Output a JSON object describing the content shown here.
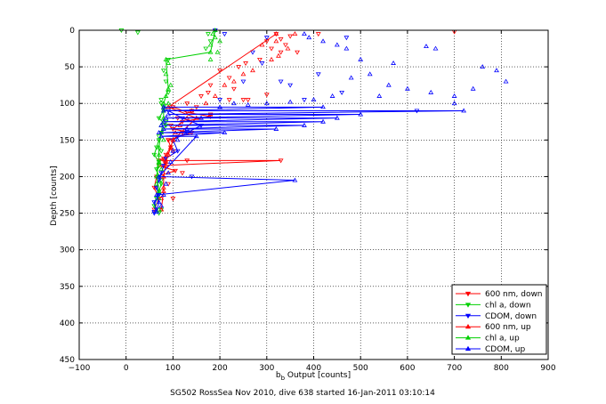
{
  "chart_data": {
    "type": "scatter",
    "title": "",
    "xlabel_main": "b",
    "xlabel_sub": "b",
    "xlabel_rest": " Output [counts]",
    "ylabel": "Depth [counts]",
    "caption": "SG502 RossSea Nov 2010, dive 638 started 16-Jan-2011 03:10:14",
    "xlim": [
      -100,
      900
    ],
    "ylim": [
      0,
      450
    ],
    "y_reversed": true,
    "grid": true,
    "xticks": [
      "−100",
      "0",
      "100",
      "200",
      "300",
      "400",
      "500",
      "600",
      "700",
      "800",
      "900"
    ],
    "yticks": [
      "0",
      "50",
      "100",
      "150",
      "200",
      "250",
      "300",
      "350",
      "400",
      "450"
    ],
    "legend_position": "bottom-right",
    "series": [
      {
        "name": "600 nm, down",
        "color": "#ff0000",
        "marker": "triangle-down",
        "line_x": [
          100,
          130,
          180,
          120,
          100,
          140,
          90,
          95,
          85,
          80,
          70,
          80,
          130,
          330,
          70,
          105,
          65,
          60,
          70,
          60
        ],
        "line_y": [
          105,
          112,
          118,
          125,
          135,
          140,
          150,
          160,
          170,
          175,
          178,
          178,
          178,
          178,
          185,
          192,
          200,
          215,
          230,
          245
        ],
        "points": [
          [
            320,
            5
          ],
          [
            330,
            12
          ],
          [
            340,
            20
          ],
          [
            350,
            8
          ],
          [
            330,
            30
          ],
          [
            310,
            25
          ],
          [
            300,
            15
          ],
          [
            285,
            40
          ],
          [
            255,
            45
          ],
          [
            240,
            50
          ],
          [
            200,
            55
          ],
          [
            220,
            65
          ],
          [
            180,
            75
          ],
          [
            230,
            80
          ],
          [
            175,
            85
          ],
          [
            160,
            90
          ],
          [
            220,
            95
          ],
          [
            130,
            100
          ],
          [
            250,
            95
          ],
          [
            150,
            105
          ],
          [
            140,
            110
          ],
          [
            110,
            120
          ],
          [
            180,
            115
          ],
          [
            95,
            130
          ],
          [
            120,
            140
          ],
          [
            90,
            150
          ],
          [
            100,
            165
          ],
          [
            85,
            180
          ],
          [
            120,
            195
          ],
          [
            90,
            210
          ],
          [
            100,
            230
          ],
          [
            700,
            2
          ],
          [
            410,
            5
          ],
          [
            365,
            30
          ],
          [
            260,
            95
          ],
          [
            300,
            88
          ]
        ]
      },
      {
        "name": "chl a, down",
        "color": "#00d000",
        "marker": "triangle-down",
        "line_x": [
          75,
          80,
          70,
          85,
          75,
          70,
          65,
          60,
          70,
          65,
          70,
          75,
          70,
          65,
          60,
          70
        ],
        "line_y": [
          100,
          110,
          120,
          130,
          140,
          150,
          160,
          170,
          180,
          190,
          200,
          210,
          220,
          230,
          240,
          250
        ],
        "points": [
          [
            175,
            5
          ],
          [
            180,
            15
          ],
          [
            170,
            25
          ],
          [
            90,
            40
          ],
          [
            80,
            55
          ],
          [
            85,
            70
          ],
          [
            90,
            85
          ],
          [
            75,
            95
          ],
          [
            80,
            105
          ],
          [
            85,
            125
          ],
          [
            70,
            145
          ],
          [
            75,
            165
          ],
          [
            70,
            185
          ],
          [
            75,
            205
          ],
          [
            70,
            225
          ],
          [
            75,
            245
          ],
          [
            -10,
            0
          ],
          [
            25,
            3
          ]
        ]
      },
      {
        "name": "CDOM, down",
        "color": "#0000ff",
        "marker": "triangle-down",
        "line_x": [
          90,
          120,
          160,
          130,
          100,
          110,
          85,
          80,
          75,
          70,
          65,
          70,
          60,
          65,
          60
        ],
        "line_y": [
          110,
          120,
          130,
          140,
          150,
          165,
          175,
          185,
          195,
          205,
          215,
          225,
          235,
          245,
          250
        ],
        "points": [
          [
            190,
            0
          ],
          [
            210,
            5
          ],
          [
            300,
            10
          ],
          [
            290,
            45
          ],
          [
            330,
            70
          ],
          [
            380,
            95
          ],
          [
            410,
            60
          ],
          [
            460,
            85
          ],
          [
            620,
            110
          ],
          [
            350,
            75
          ],
          [
            250,
            70
          ],
          [
            270,
            30
          ],
          [
            470,
            10
          ],
          [
            200,
            95
          ],
          [
            60,
            248
          ],
          [
            140,
            200
          ]
        ]
      },
      {
        "name": "600 nm, up",
        "color": "#ff0000",
        "marker": "triangle-up",
        "line_x": [
          320,
          90,
          150,
          100,
          85,
          80,
          80,
          75
        ],
        "line_y": [
          5,
          105,
          120,
          150,
          180,
          200,
          220,
          245
        ],
        "points": [
          [
            320,
            15
          ],
          [
            345,
            25
          ],
          [
            325,
            35
          ],
          [
            360,
            5
          ],
          [
            290,
            20
          ],
          [
            310,
            40
          ],
          [
            270,
            55
          ],
          [
            250,
            60
          ],
          [
            230,
            70
          ],
          [
            210,
            75
          ],
          [
            190,
            90
          ],
          [
            170,
            100
          ],
          [
            140,
            110
          ],
          [
            130,
            120
          ],
          [
            115,
            130
          ],
          [
            105,
            140
          ],
          [
            100,
            150
          ],
          [
            95,
            160
          ],
          [
            90,
            170
          ],
          [
            85,
            185
          ],
          [
            80,
            200
          ],
          [
            80,
            215
          ],
          [
            75,
            230
          ],
          [
            75,
            245
          ]
        ]
      },
      {
        "name": "chl a, up",
        "color": "#00d000",
        "marker": "triangle-up",
        "line_x": [
          190,
          180,
          85,
          90,
          80,
          80,
          75,
          70,
          70,
          65,
          70
        ],
        "line_y": [
          0,
          30,
          40,
          80,
          100,
          120,
          140,
          160,
          180,
          200,
          220
        ],
        "points": [
          [
            190,
            10
          ],
          [
            180,
            20
          ],
          [
            195,
            30
          ],
          [
            180,
            40
          ],
          [
            90,
            45
          ],
          [
            85,
            60
          ],
          [
            95,
            75
          ],
          [
            85,
            90
          ],
          [
            90,
            100
          ],
          [
            80,
            110
          ],
          [
            75,
            130
          ],
          [
            80,
            150
          ],
          [
            70,
            170
          ],
          [
            75,
            190
          ],
          [
            65,
            210
          ],
          [
            70,
            230
          ],
          [
            70,
            245
          ],
          [
            185,
            5
          ],
          [
            200,
            15
          ]
        ]
      },
      {
        "name": "CDOM, up",
        "color": "#0000ff",
        "marker": "triangle-up",
        "line_x": [
          80,
          420,
          80,
          720,
          90,
          500,
          85,
          450,
          80,
          420,
          75,
          380,
          80,
          320,
          70,
          210,
          75,
          150,
          70,
          360,
          65,
          70,
          65
        ],
        "line_y": [
          105,
          105,
          110,
          110,
          115,
          115,
          120,
          120,
          125,
          125,
          130,
          130,
          135,
          135,
          140,
          140,
          145,
          145,
          200,
          205,
          225,
          235,
          248
        ],
        "points": [
          [
            380,
            5
          ],
          [
            390,
            10
          ],
          [
            420,
            15
          ],
          [
            450,
            20
          ],
          [
            470,
            25
          ],
          [
            500,
            40
          ],
          [
            520,
            60
          ],
          [
            560,
            75
          ],
          [
            600,
            80
          ],
          [
            650,
            85
          ],
          [
            700,
            90
          ],
          [
            740,
            80
          ],
          [
            760,
            50
          ],
          [
            790,
            55
          ],
          [
            810,
            70
          ],
          [
            640,
            22
          ],
          [
            660,
            25
          ],
          [
            570,
            45
          ],
          [
            480,
            65
          ],
          [
            440,
            90
          ],
          [
            400,
            95
          ],
          [
            350,
            98
          ],
          [
            300,
            100
          ],
          [
            260,
            102
          ],
          [
            230,
            100
          ],
          [
            200,
            105
          ],
          [
            160,
            120
          ],
          [
            130,
            135
          ],
          [
            110,
            150
          ],
          [
            100,
            165
          ],
          [
            95,
            180
          ],
          [
            90,
            195
          ],
          [
            85,
            210
          ],
          [
            80,
            225
          ],
          [
            75,
            240
          ],
          [
            540,
            90
          ],
          [
            700,
            100
          ]
        ]
      }
    ]
  }
}
